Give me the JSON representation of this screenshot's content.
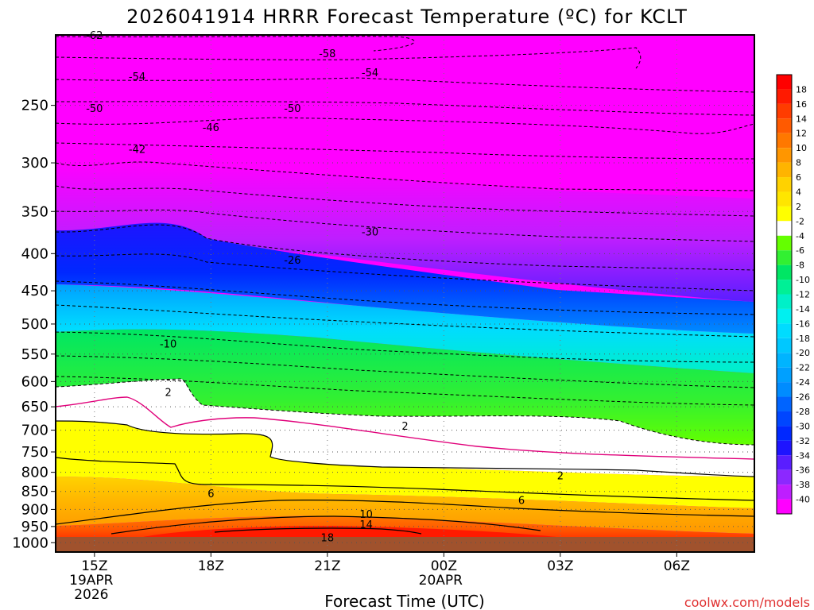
{
  "chart_data": {
    "type": "heatmap",
    "title": "2026041914 HRRR Forecast Temperature (ºC) for KCLT",
    "xlabel": "Forecast Time (UTC)",
    "ylabel": "",
    "watermark": "coolwx.com/models",
    "x_ticks": [
      {
        "label": "15Z",
        "sub": [
          "19APR",
          "2026"
        ],
        "hours": 15
      },
      {
        "label": "18Z",
        "sub": [],
        "hours": 18
      },
      {
        "label": "21Z",
        "sub": [],
        "hours": 21
      },
      {
        "label": "00Z",
        "sub": [
          "20APR"
        ],
        "hours": 24
      },
      {
        "label": "03Z",
        "sub": [],
        "hours": 27
      },
      {
        "label": "06Z",
        "sub": [],
        "hours": 30
      }
    ],
    "xlim_hours": [
      14,
      32
    ],
    "y_ticks": [
      250,
      300,
      350,
      400,
      450,
      500,
      550,
      600,
      650,
      700,
      750,
      800,
      850,
      900,
      950,
      1000
    ],
    "y_axis": {
      "scale": "log",
      "reversed": true,
      "units": "hPa",
      "top": 200,
      "bottom": 1030
    },
    "colorbar": {
      "bands": [
        {
          "label": "18",
          "color": "#ff1a00"
        },
        {
          "label": "16",
          "color": "#ff3c00"
        },
        {
          "label": "14",
          "color": "#ff5a00"
        },
        {
          "label": "12",
          "color": "#ff7800"
        },
        {
          "label": "10",
          "color": "#ff9600"
        },
        {
          "label": "8",
          "color": "#ffb400"
        },
        {
          "label": "6",
          "color": "#ffd200"
        },
        {
          "label": "4",
          "color": "#ffe600"
        },
        {
          "label": "2",
          "color": "#ffff00"
        },
        {
          "label": "-2",
          "color": "#ffffff"
        },
        {
          "label": "-4",
          "color": "#64ff00"
        },
        {
          "label": "-6",
          "color": "#32f032"
        },
        {
          "label": "-8",
          "color": "#00e664"
        },
        {
          "label": "-10",
          "color": "#00f096"
        },
        {
          "label": "-12",
          "color": "#00f0c8"
        },
        {
          "label": "-14",
          "color": "#00f0f0"
        },
        {
          "label": "-16",
          "color": "#00dcff"
        },
        {
          "label": "-18",
          "color": "#00c8ff"
        },
        {
          "label": "-20",
          "color": "#00b4ff"
        },
        {
          "label": "-22",
          "color": "#00a0ff"
        },
        {
          "label": "-24",
          "color": "#008cff"
        },
        {
          "label": "-26",
          "color": "#0064ff"
        },
        {
          "label": "-28",
          "color": "#0046ff"
        },
        {
          "label": "-30",
          "color": "#0028ff"
        },
        {
          "label": "-32",
          "color": "#1e14ff"
        },
        {
          "label": "-34",
          "color": "#5a1eff"
        },
        {
          "label": "-36",
          "color": "#8c28ff"
        },
        {
          "label": "-38",
          "color": "#be1eff"
        },
        {
          "label": "-40",
          "color": "#ff00ff"
        }
      ],
      "top_color": "#ff0000"
    },
    "contour_labels": [
      {
        "text": "-62",
        "hours": 15.0,
        "p": 200
      },
      {
        "text": "-58",
        "hours": 21.0,
        "p": 212
      },
      {
        "text": "-54",
        "hours": 16.1,
        "p": 228
      },
      {
        "text": "-54",
        "hours": 22.1,
        "p": 225
      },
      {
        "text": "-50",
        "hours": 15.0,
        "p": 252
      },
      {
        "text": "-50",
        "hours": 20.1,
        "p": 252
      },
      {
        "text": "-46",
        "hours": 18.0,
        "p": 268
      },
      {
        "text": "-42",
        "hours": 16.1,
        "p": 287
      },
      {
        "text": "-30",
        "hours": 22.1,
        "p": 373
      },
      {
        "text": "-26",
        "hours": 20.1,
        "p": 408
      },
      {
        "text": "-10",
        "hours": 16.9,
        "p": 532
      },
      {
        "text": "2",
        "hours": 16.9,
        "p": 620
      },
      {
        "text": "2",
        "hours": 23.0,
        "p": 690
      },
      {
        "text": "2",
        "hours": 27.0,
        "p": 808
      },
      {
        "text": "6",
        "hours": 18.0,
        "p": 855
      },
      {
        "text": "6",
        "hours": 26.0,
        "p": 873
      },
      {
        "text": "10",
        "hours": 22.0,
        "p": 913
      },
      {
        "text": "14",
        "hours": 22.0,
        "p": 943
      },
      {
        "text": "18",
        "hours": 21.0,
        "p": 983
      }
    ]
  }
}
